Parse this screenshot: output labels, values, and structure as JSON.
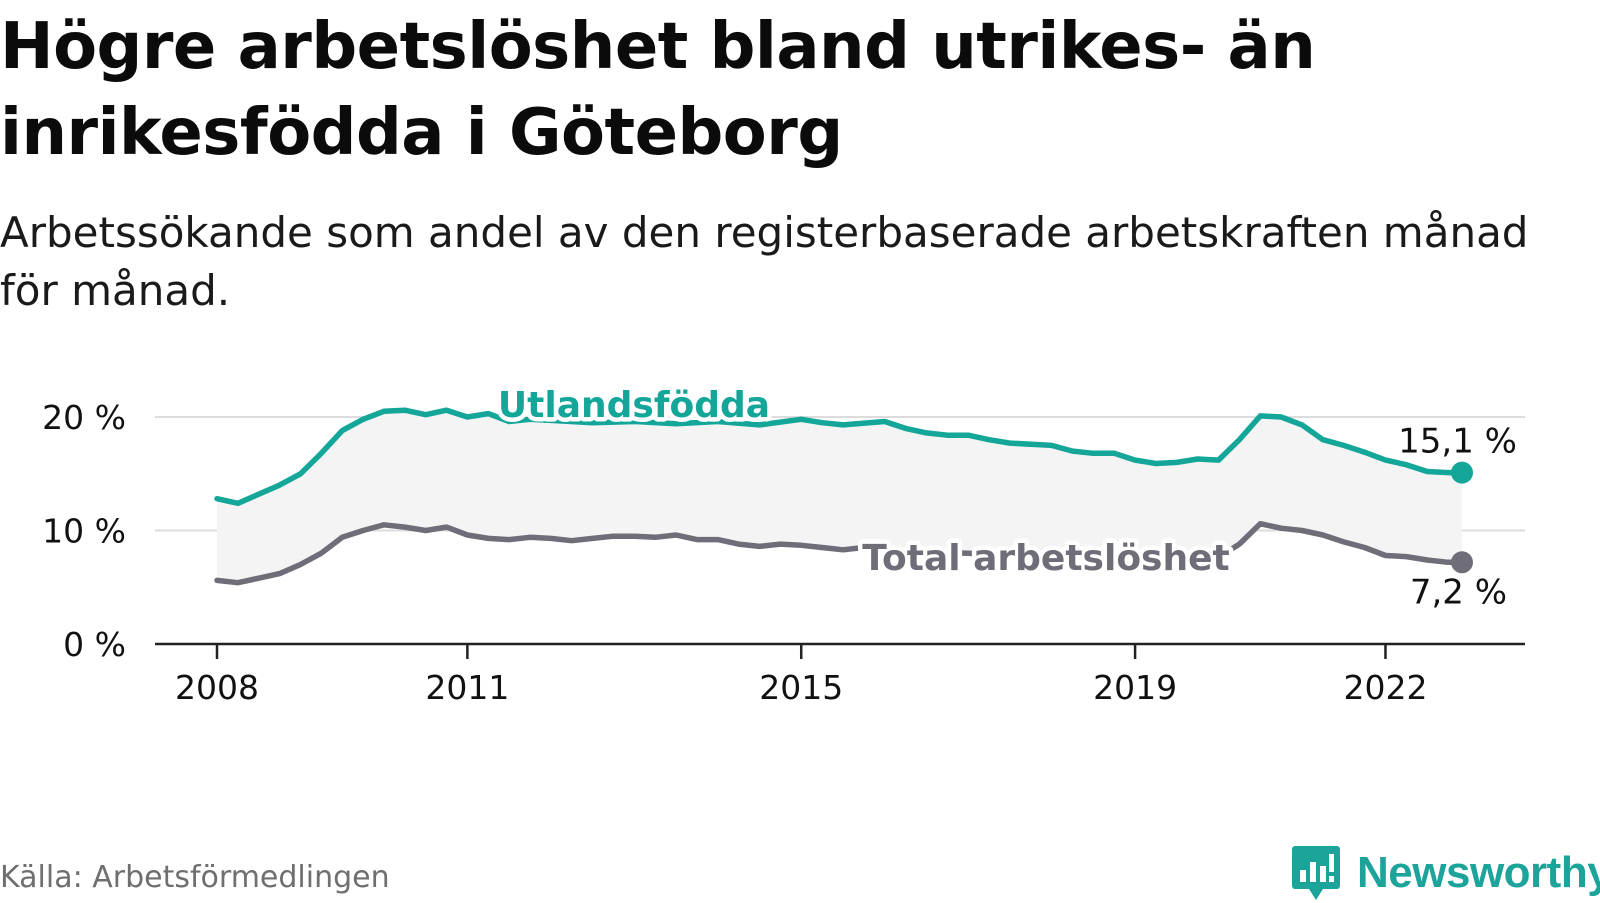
{
  "title": "Högre arbetslöshet bland utrikes- än inrikesfödda i Göteborg",
  "subtitle": "Arbetssökande som andel av den registerbaserade arbetskraften månad för månad.",
  "source": "Källa: Arbetsförmedlingen",
  "brand": {
    "name": "Newsworthy",
    "icon": "newsworthy-logo-icon"
  },
  "colors": {
    "foreign": "#13a699",
    "total": "#6e6d78",
    "band": "#f4f4f5",
    "grid": "#dcdcdc",
    "axis": "#222222",
    "text": "#111111"
  },
  "chart_data": {
    "type": "line",
    "title": "Högre arbetslöshet bland utrikes- än inrikesfödda i Göteborg",
    "xlabel": "",
    "ylabel": "",
    "xlim": [
      2008,
      2022.917
    ],
    "ylim": [
      0,
      20
    ],
    "x_ticks": [
      {
        "value": 2008,
        "label": "2008"
      },
      {
        "value": 2011,
        "label": "2011"
      },
      {
        "value": 2015,
        "label": "2015"
      },
      {
        "value": 2019,
        "label": "2019"
      },
      {
        "value": 2022,
        "label": "2022"
      }
    ],
    "y_ticks": [
      {
        "value": 0,
        "label": "0 %"
      },
      {
        "value": 10,
        "label": "10 %"
      },
      {
        "value": 20,
        "label": "20 %"
      }
    ],
    "grid": true,
    "shaded_band_between_series": true,
    "series": [
      {
        "name": "Utlandsfödda",
        "label": "Utlandsfödda",
        "end_label": "15,1 %",
        "points": [
          [
            2008.0,
            12.8
          ],
          [
            2008.25,
            12.4
          ],
          [
            2008.5,
            13.2
          ],
          [
            2008.75,
            14.0
          ],
          [
            2009.0,
            15.0
          ],
          [
            2009.25,
            16.8
          ],
          [
            2009.5,
            18.8
          ],
          [
            2009.75,
            19.8
          ],
          [
            2010.0,
            20.5
          ],
          [
            2010.25,
            20.6
          ],
          [
            2010.5,
            20.2
          ],
          [
            2010.75,
            20.6
          ],
          [
            2011.0,
            20.0
          ],
          [
            2011.25,
            20.3
          ],
          [
            2011.5,
            19.6
          ],
          [
            2011.75,
            19.8
          ],
          [
            2012.0,
            19.7
          ],
          [
            2012.5,
            19.5
          ],
          [
            2013.0,
            19.6
          ],
          [
            2013.5,
            19.4
          ],
          [
            2014.0,
            19.6
          ],
          [
            2014.5,
            19.3
          ],
          [
            2015.0,
            19.8
          ],
          [
            2015.25,
            19.5
          ],
          [
            2015.5,
            19.3
          ],
          [
            2016.0,
            19.6
          ],
          [
            2016.25,
            19.0
          ],
          [
            2016.5,
            18.6
          ],
          [
            2016.75,
            18.4
          ],
          [
            2017.0,
            18.4
          ],
          [
            2017.25,
            18.0
          ],
          [
            2017.5,
            17.7
          ],
          [
            2018.0,
            17.5
          ],
          [
            2018.25,
            17.0
          ],
          [
            2018.5,
            16.8
          ],
          [
            2018.75,
            16.8
          ],
          [
            2019.0,
            16.2
          ],
          [
            2019.25,
            15.9
          ],
          [
            2019.5,
            16.0
          ],
          [
            2019.75,
            16.3
          ],
          [
            2020.0,
            16.2
          ],
          [
            2020.25,
            18.0
          ],
          [
            2020.5,
            20.1
          ],
          [
            2020.75,
            20.0
          ],
          [
            2021.0,
            19.3
          ],
          [
            2021.25,
            18.0
          ],
          [
            2021.5,
            17.5
          ],
          [
            2021.75,
            16.9
          ],
          [
            2022.0,
            16.2
          ],
          [
            2022.25,
            15.8
          ],
          [
            2022.5,
            15.2
          ],
          [
            2022.75,
            15.1
          ],
          [
            2022.917,
            15.1
          ]
        ]
      },
      {
        "name": "Total arbetslöshet",
        "label": "Total arbetslöshet",
        "end_label": "7,2 %",
        "points": [
          [
            2008.0,
            5.6
          ],
          [
            2008.25,
            5.4
          ],
          [
            2008.5,
            5.8
          ],
          [
            2008.75,
            6.2
          ],
          [
            2009.0,
            7.0
          ],
          [
            2009.25,
            8.0
          ],
          [
            2009.5,
            9.4
          ],
          [
            2009.75,
            10.0
          ],
          [
            2010.0,
            10.5
          ],
          [
            2010.25,
            10.3
          ],
          [
            2010.5,
            10.0
          ],
          [
            2010.75,
            10.3
          ],
          [
            2011.0,
            9.6
          ],
          [
            2011.25,
            9.3
          ],
          [
            2011.5,
            9.2
          ],
          [
            2011.75,
            9.4
          ],
          [
            2012.0,
            9.3
          ],
          [
            2012.25,
            9.1
          ],
          [
            2012.5,
            9.3
          ],
          [
            2012.75,
            9.5
          ],
          [
            2013.0,
            9.5
          ],
          [
            2013.25,
            9.4
          ],
          [
            2013.5,
            9.6
          ],
          [
            2013.75,
            9.2
          ],
          [
            2014.0,
            9.2
          ],
          [
            2014.25,
            8.8
          ],
          [
            2014.5,
            8.6
          ],
          [
            2014.75,
            8.8
          ],
          [
            2015.0,
            8.7
          ],
          [
            2015.25,
            8.5
          ],
          [
            2015.5,
            8.3
          ],
          [
            2015.75,
            8.5
          ],
          [
            2016.0,
            8.3
          ],
          [
            2016.5,
            8.1
          ],
          [
            2017.0,
            8.0
          ],
          [
            2017.5,
            7.8
          ],
          [
            2018.0,
            7.8
          ],
          [
            2018.5,
            7.6
          ],
          [
            2019.0,
            7.5
          ],
          [
            2019.5,
            7.5
          ],
          [
            2020.0,
            7.6
          ],
          [
            2020.25,
            8.8
          ],
          [
            2020.5,
            10.6
          ],
          [
            2020.75,
            10.2
          ],
          [
            2021.0,
            10.0
          ],
          [
            2021.25,
            9.6
          ],
          [
            2021.5,
            9.0
          ],
          [
            2021.75,
            8.5
          ],
          [
            2022.0,
            7.8
          ],
          [
            2022.25,
            7.7
          ],
          [
            2022.5,
            7.4
          ],
          [
            2022.75,
            7.2
          ],
          [
            2022.917,
            7.2
          ]
        ]
      }
    ]
  }
}
